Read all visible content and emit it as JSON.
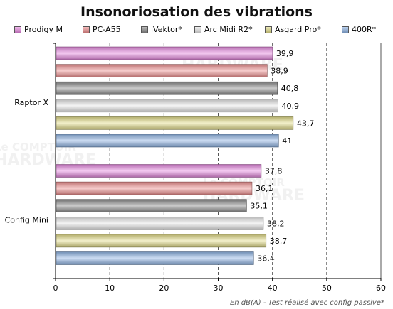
{
  "chart_data": {
    "type": "bar",
    "orientation": "horizontal",
    "title": "Insonoriosation des vibrations",
    "categories": [
      "Raptor X",
      "Config Mini"
    ],
    "series": [
      {
        "name": "Prodigy M",
        "values": [
          39.9,
          37.8
        ],
        "labels": [
          "39,9",
          "37,8"
        ],
        "color": "#e68ae0"
      },
      {
        "name": "PC-A55",
        "values": [
          38.9,
          36.1
        ],
        "labels": [
          "38,9",
          "36,1"
        ],
        "color": "#ee8f8f"
      },
      {
        "name": "iVektor*",
        "values": [
          40.8,
          35.1
        ],
        "labels": [
          "40,8",
          "35,1"
        ],
        "color": "#8a8a8a"
      },
      {
        "name": "Arc Midi R2*",
        "values": [
          40.9,
          38.2
        ],
        "labels": [
          "40,9",
          "38,2"
        ],
        "color": "#e6e6e6"
      },
      {
        "name": "Asgard Pro*",
        "values": [
          43.7,
          38.7
        ],
        "labels": [
          "43,7",
          "38,7"
        ],
        "color": "#e2dc8a"
      },
      {
        "name": "400R*",
        "values": [
          41,
          36.4
        ],
        "labels": [
          "41",
          "36,4"
        ],
        "color": "#8fb4e4"
      }
    ],
    "xlim": [
      0,
      60
    ],
    "xticks": [
      0,
      10,
      20,
      30,
      40,
      50,
      60
    ],
    "grid": "vertical dashed",
    "legend": "top",
    "footnote": "En dB(A) - Test réalisé avec config passive*"
  },
  "watermark": {
    "line1": "Le COMPTOIR",
    "line2": "HARDWARE",
    "line3": "du"
  }
}
